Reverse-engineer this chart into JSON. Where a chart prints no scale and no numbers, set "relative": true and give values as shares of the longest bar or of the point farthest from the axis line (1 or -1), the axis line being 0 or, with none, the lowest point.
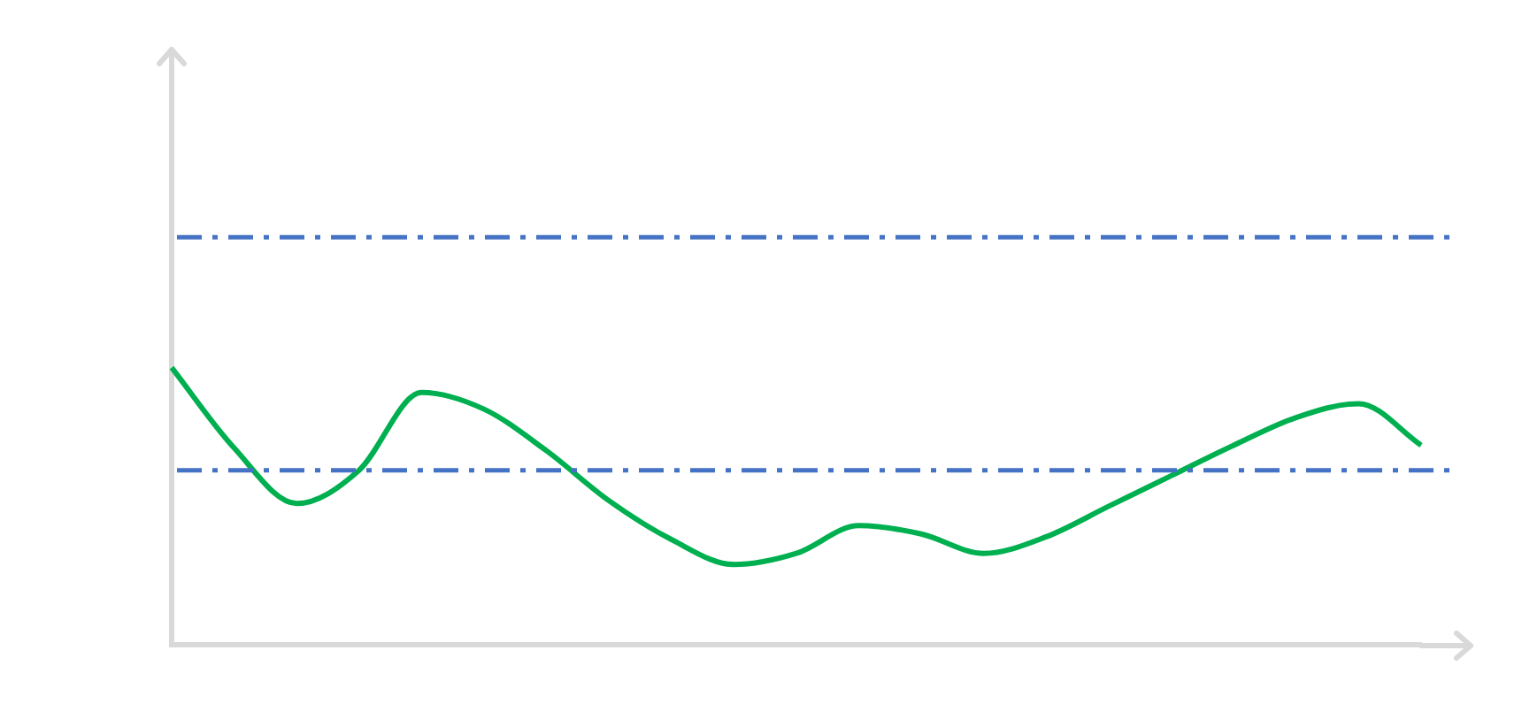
{
  "chart_data": {
    "type": "line",
    "relative": true,
    "categories": [
      null,
      null,
      null,
      null,
      null,
      null,
      null,
      null,
      null,
      null,
      null,
      null,
      null,
      null,
      null,
      null,
      null,
      null,
      null,
      null,
      null
    ],
    "series": [
      {
        "color": "#00b050",
        "values": [
          1.0,
          0.71,
          0.51,
          0.63,
          0.91,
          0.85,
          0.7,
          0.52,
          0.38,
          0.29,
          0.33,
          0.43,
          0.4,
          0.33,
          0.39,
          0.5,
          0.61,
          0.72,
          0.82,
          0.87,
          0.72
        ]
      }
    ],
    "ref_lines": [
      {
        "axis": "y",
        "value": 1.47,
        "color": "#4472c4",
        "line_style": "dashed"
      },
      {
        "axis": "y",
        "value": 0.63,
        "color": "#4472c4",
        "line_style": "dashed"
      }
    ],
    "marker": "none",
    "legend": false,
    "grid": false
  }
}
